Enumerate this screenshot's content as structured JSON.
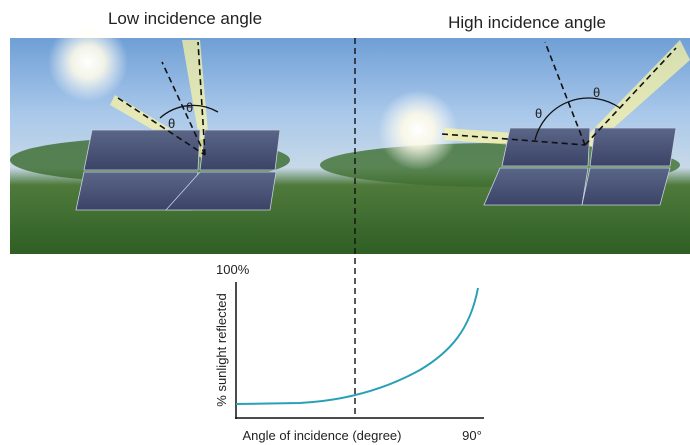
{
  "header": {
    "left_title": "Low incidence angle",
    "right_title": "High incidence angle"
  },
  "diagram": {
    "left_angles": [
      "θ",
      "θ"
    ],
    "right_angles": [
      "θ",
      "θ"
    ]
  },
  "graph": {
    "y_max_label": "100%",
    "y_axis_label": "% sunlight reflected",
    "x_axis_label": "Angle of incidence (degree)",
    "x_max_label": "90°"
  }
}
